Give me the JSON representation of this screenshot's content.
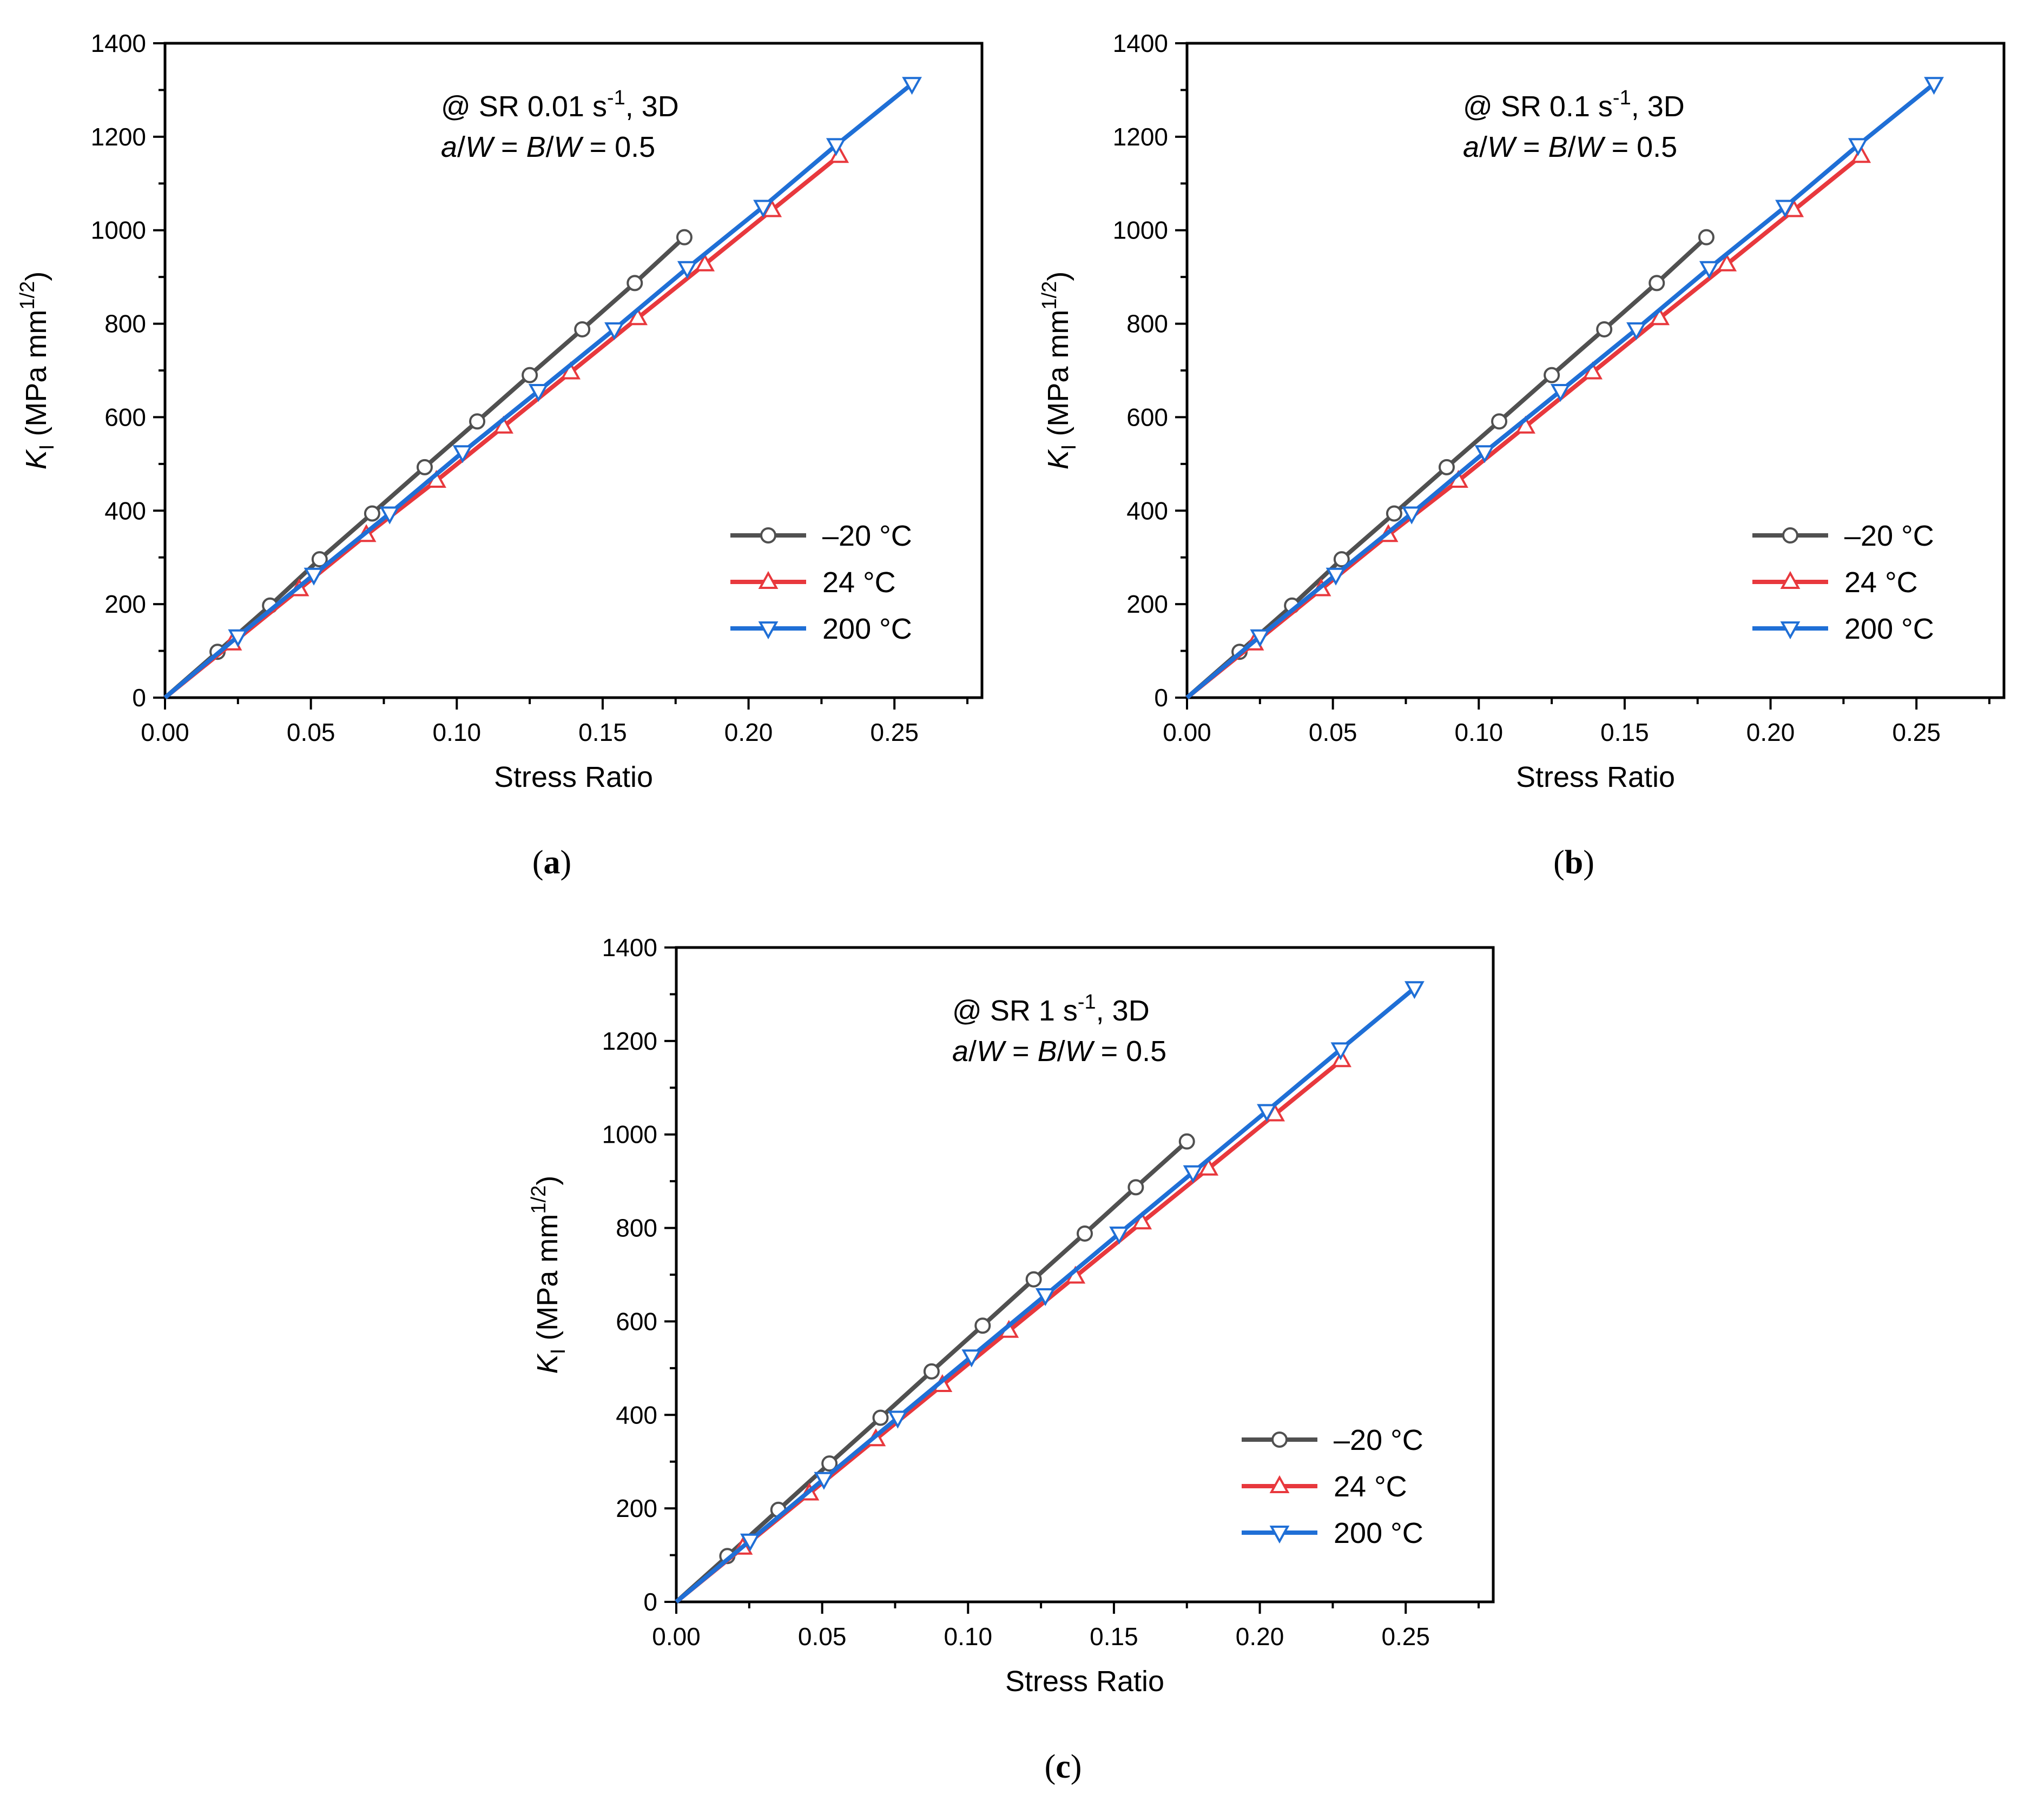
{
  "chart_data": [
    {
      "type": "line",
      "panel": "(a)",
      "caption": {
        "open": "(",
        "letter": "a",
        "close": ")"
      },
      "annotation": {
        "line1": {
          "prefix": "@ SR 0.01 s",
          "sup": "-1",
          "suffix": ", 3D"
        },
        "line2": {
          "a": "a",
          "s1": "/",
          "w1": "W",
          "eq": " = ",
          "b": "B",
          "s2": "/",
          "w2": "W",
          "val": " = 0.5"
        }
      },
      "xlabel": "Stress Ratio",
      "ylabel": {
        "k": "K",
        "sub": "I",
        "unit": " (MPa mm",
        "sup": "1/2",
        "close": ")"
      },
      "xlim": [
        0,
        0.28
      ],
      "ylim": [
        0,
        1400
      ],
      "xticks": [
        "0.00",
        "0.05",
        "0.10",
        "0.15",
        "0.20",
        "0.25"
      ],
      "yticks": [
        "0",
        "200",
        "400",
        "600",
        "800",
        "1000",
        "1200",
        "1400"
      ],
      "legend_position": "lower-right",
      "series": [
        {
          "name": "–20 °C",
          "color": "#505050",
          "marker": "circle",
          "x": [
            0.0,
            0.018,
            0.036,
            0.053,
            0.071,
            0.089,
            0.107,
            0.125,
            0.143,
            0.161,
            0.178
          ],
          "y": [
            0,
            98,
            197,
            296,
            394,
            493,
            591,
            690,
            788,
            887,
            985
          ]
        },
        {
          "name": "24 °C",
          "color": "#e8383d",
          "marker": "triangle-up",
          "x": [
            0.0,
            0.023,
            0.046,
            0.069,
            0.093,
            0.116,
            0.139,
            0.162,
            0.185,
            0.208,
            0.231
          ],
          "y": [
            0,
            116,
            232,
            348,
            464,
            580,
            696,
            812,
            927,
            1043,
            1159
          ]
        },
        {
          "name": "200 °C",
          "color": "#1f6fd6",
          "marker": "triangle-down",
          "x": [
            0.0,
            0.025,
            0.051,
            0.077,
            0.102,
            0.128,
            0.154,
            0.179,
            0.205,
            0.23,
            0.256
          ],
          "y": [
            0,
            131,
            263,
            394,
            525,
            656,
            788,
            919,
            1050,
            1182,
            1313
          ]
        }
      ]
    },
    {
      "type": "line",
      "panel": "(b)",
      "caption": {
        "open": "(",
        "letter": "b",
        "close": ")"
      },
      "annotation": {
        "line1": {
          "prefix": "@ SR 0.1 s",
          "sup": "-1",
          "suffix": ", 3D"
        },
        "line2": {
          "a": "a",
          "s1": "/",
          "w1": "W",
          "eq": " = ",
          "b": "B",
          "s2": "/",
          "w2": "W",
          "val": " = 0.5"
        }
      },
      "xlabel": "Stress Ratio",
      "ylabel": {
        "k": "K",
        "sub": "I",
        "unit": " (MPa mm",
        "sup": "1/2",
        "close": ")"
      },
      "xlim": [
        0,
        0.28
      ],
      "ylim": [
        0,
        1400
      ],
      "xticks": [
        "0.00",
        "0.05",
        "0.10",
        "0.15",
        "0.20",
        "0.25"
      ],
      "yticks": [
        "0",
        "200",
        "400",
        "600",
        "800",
        "1000",
        "1200",
        "1400"
      ],
      "legend_position": "lower-right",
      "series": [
        {
          "name": "–20 °C",
          "color": "#505050",
          "marker": "circle",
          "x": [
            0.0,
            0.018,
            0.036,
            0.053,
            0.071,
            0.089,
            0.107,
            0.125,
            0.143,
            0.161,
            0.178
          ],
          "y": [
            0,
            98,
            197,
            296,
            394,
            493,
            591,
            690,
            788,
            887,
            985
          ]
        },
        {
          "name": "24 °C",
          "color": "#e8383d",
          "marker": "triangle-up",
          "x": [
            0.0,
            0.023,
            0.046,
            0.069,
            0.093,
            0.116,
            0.139,
            0.162,
            0.185,
            0.208,
            0.231
          ],
          "y": [
            0,
            116,
            232,
            348,
            464,
            580,
            696,
            812,
            927,
            1043,
            1159
          ]
        },
        {
          "name": "200 °C",
          "color": "#1f6fd6",
          "marker": "triangle-down",
          "x": [
            0.0,
            0.025,
            0.051,
            0.077,
            0.102,
            0.128,
            0.154,
            0.179,
            0.205,
            0.23,
            0.256
          ],
          "y": [
            0,
            131,
            263,
            394,
            525,
            656,
            788,
            919,
            1050,
            1182,
            1313
          ]
        }
      ]
    },
    {
      "type": "line",
      "panel": "(c)",
      "caption": {
        "open": "(",
        "letter": "c",
        "close": ")"
      },
      "annotation": {
        "line1": {
          "prefix": "@ SR 1 s",
          "sup": "-1",
          "suffix": ", 3D"
        },
        "line2": {
          "a": "a",
          "s1": "/",
          "w1": "W",
          "eq": " = ",
          "b": "B",
          "s2": "/",
          "w2": "W",
          "val": " = 0.5"
        }
      },
      "xlabel": "Stress Ratio",
      "ylabel": {
        "k": "K",
        "sub": "I",
        "unit": " (MPa mm",
        "sup": "1/2",
        "close": ")"
      },
      "xlim": [
        0,
        0.28
      ],
      "ylim": [
        0,
        1400
      ],
      "xticks": [
        "0.00",
        "0.05",
        "0.10",
        "0.15",
        "0.20",
        "0.25"
      ],
      "yticks": [
        "0",
        "200",
        "400",
        "600",
        "800",
        "1000",
        "1200",
        "1400"
      ],
      "legend_position": "lower-right",
      "series": [
        {
          "name": "–20 °C",
          "color": "#505050",
          "marker": "circle",
          "x": [
            0.0,
            0.0175,
            0.035,
            0.0525,
            0.07,
            0.0875,
            0.105,
            0.1225,
            0.14,
            0.1575,
            0.175
          ],
          "y": [
            0,
            98,
            197,
            296,
            394,
            493,
            591,
            690,
            788,
            887,
            985
          ]
        },
        {
          "name": "24 °C",
          "color": "#e8383d",
          "marker": "triangle-up",
          "x": [
            0.0,
            0.0228,
            0.0456,
            0.0684,
            0.0912,
            0.114,
            0.1368,
            0.1596,
            0.1824,
            0.2052,
            0.228
          ],
          "y": [
            0,
            116,
            232,
            348,
            464,
            580,
            696,
            812,
            927,
            1043,
            1159
          ]
        },
        {
          "name": "200 °C",
          "color": "#1f6fd6",
          "marker": "triangle-down",
          "x": [
            0.0,
            0.0253,
            0.0506,
            0.0759,
            0.1012,
            0.1265,
            0.1518,
            0.1771,
            0.2024,
            0.2277,
            0.253
          ],
          "y": [
            0,
            131,
            263,
            394,
            525,
            656,
            788,
            919,
            1050,
            1182,
            1313
          ]
        }
      ]
    }
  ]
}
